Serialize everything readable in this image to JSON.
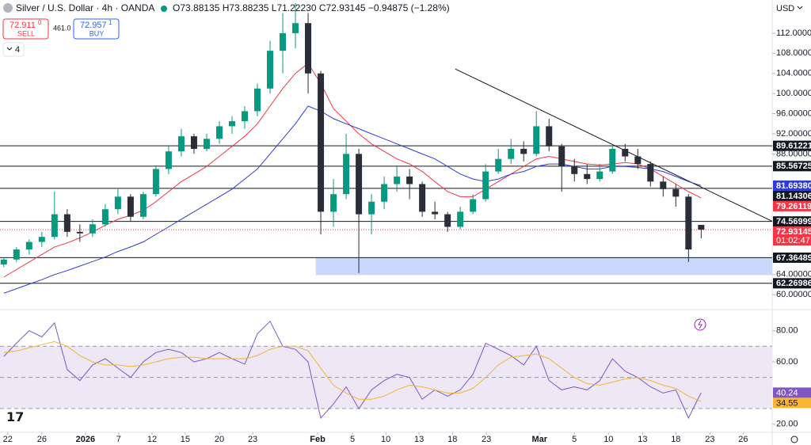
{
  "header": {
    "symbol": "Silver / U.S. Dollar · 4h · OANDA",
    "ohlc": "O73.88135 H73.88235 L71.22230 C72.93145 −0.94875 (−1.28%)",
    "sell_price": "72.911",
    "sell_sup": "0",
    "sell": "SELL",
    "spread": "461.0",
    "buy_price": "72.957",
    "buy_sup": "1",
    "buy": "BUY",
    "indicators": "4",
    "currency": "USD",
    "countdown": "01:02:47"
  },
  "chart_data": [
    {
      "type": "candlestick",
      "xlim": [
        -0.3,
        60.6
      ],
      "ylim": [
        57.2,
        118.6
      ],
      "yticks": [
        {
          "value": 60,
          "label": "60.00000"
        },
        {
          "value": 64,
          "label": "64.00000"
        },
        {
          "value": 88,
          "label": "88.00000"
        },
        {
          "value": 92,
          "label": "92.00000"
        },
        {
          "value": 96,
          "label": "96.00000"
        },
        {
          "value": 100,
          "label": "100.00000"
        },
        {
          "value": 104,
          "label": "104.00000"
        },
        {
          "value": 108,
          "label": "108.00000"
        },
        {
          "value": 112,
          "label": "112.00000"
        }
      ],
      "xticks": [
        {
          "value": 0.31,
          "label": "22"
        },
        {
          "value": 3,
          "label": "26"
        },
        {
          "value": 6.44,
          "label": "2026"
        },
        {
          "value": 9.06,
          "label": "7"
        },
        {
          "value": 11.69,
          "label": "12"
        },
        {
          "value": 14.31,
          "label": "15"
        },
        {
          "value": 17,
          "label": "20"
        },
        {
          "value": 19.63,
          "label": "23"
        },
        {
          "value": 24.75,
          "label": "Feb"
        },
        {
          "value": 27.5,
          "label": "5"
        },
        {
          "value": 30.13,
          "label": "10"
        },
        {
          "value": 32.75,
          "label": "13"
        },
        {
          "value": 35.38,
          "label": "18"
        },
        {
          "value": 38.06,
          "label": "23"
        },
        {
          "value": 42.25,
          "label": "Mar"
        },
        {
          "value": 45,
          "label": "5"
        },
        {
          "value": 47.69,
          "label": "10"
        },
        {
          "value": 50.38,
          "label": "13"
        },
        {
          "value": 53,
          "label": "18"
        },
        {
          "value": 55.69,
          "label": "23"
        },
        {
          "value": 58.31,
          "label": "26"
        }
      ],
      "up_color": "#089981",
      "down_color": "#2a2e39",
      "candles": {
        "open": [
          66.0,
          67.0,
          69.0,
          70.5,
          71.5,
          76.0,
          72.5,
          72.2,
          74.0,
          77.0,
          79.5,
          75.5,
          80.0,
          85.0,
          88.5,
          91.5,
          89.0,
          91.0,
          93.5,
          94.5,
          96.5,
          101.0,
          108.5,
          112.0,
          114.0,
          104.0,
          76.5,
          80.0,
          88.0,
          76.0,
          78.5,
          82.0,
          83.5,
          82.0,
          76.5,
          76.0,
          73.5,
          76.5,
          79.0,
          84.5,
          87.0,
          89.0,
          88.0,
          93.5,
          89.5,
          85.5,
          84.0,
          83.0,
          84.5,
          89.0,
          87.5,
          86.0,
          82.5,
          81.0,
          79.5,
          73.88135
        ],
        "high": [
          67.5,
          69.5,
          71.0,
          72.5,
          80.5,
          77.0,
          74.0,
          75.0,
          78.0,
          81.0,
          80.0,
          80.5,
          85.5,
          89.5,
          93.0,
          92.0,
          92.0,
          94.5,
          95.5,
          97.5,
          102.0,
          110.5,
          116.0,
          118.0,
          116.0,
          104.5,
          83.0,
          92.0,
          89.0,
          80.0,
          83.5,
          85.5,
          85.0,
          82.5,
          78.5,
          76.5,
          77.5,
          80.0,
          86.0,
          89.0,
          91.0,
          90.5,
          96.5,
          95.0,
          90.0,
          87.0,
          86.0,
          86.0,
          90.0,
          90.0,
          89.0,
          86.5,
          83.5,
          82.0,
          80.0,
          73.88235
        ],
        "low": [
          65.5,
          66.5,
          68.0,
          69.5,
          71.0,
          71.5,
          70.5,
          71.5,
          73.5,
          76.0,
          74.5,
          75.0,
          79.5,
          84.0,
          87.5,
          88.0,
          88.5,
          90.0,
          92.0,
          93.0,
          95.5,
          100.0,
          104.0,
          109.0,
          100.0,
          72.0,
          73.5,
          79.0,
          64.3,
          72.0,
          77.0,
          80.5,
          79.0,
          75.5,
          75.0,
          72.5,
          73.0,
          76.0,
          78.5,
          84.0,
          86.0,
          86.5,
          87.5,
          88.5,
          80.5,
          82.5,
          82.0,
          82.5,
          84.0,
          86.5,
          85.0,
          81.5,
          79.5,
          77.5,
          66.5,
          71.2223
        ],
        "close": [
          67.0,
          69.0,
          70.5,
          71.5,
          76.0,
          72.5,
          72.2,
          74.0,
          77.0,
          79.5,
          75.5,
          80.0,
          85.0,
          88.5,
          91.5,
          89.0,
          91.0,
          93.5,
          94.5,
          96.5,
          101.0,
          108.5,
          112.0,
          114.0,
          104.0,
          76.5,
          80.0,
          88.0,
          76.0,
          78.5,
          82.0,
          83.5,
          82.0,
          76.5,
          76.0,
          73.5,
          76.5,
          79.0,
          84.5,
          87.0,
          89.0,
          88.0,
          93.5,
          89.5,
          85.5,
          84.0,
          83.0,
          84.5,
          89.0,
          87.5,
          86.0,
          82.5,
          81.0,
          79.5,
          69.0,
          72.93145
        ]
      },
      "series": [
        {
          "color": "#f23645",
          "values": [
            63.5,
            65,
            66.5,
            68,
            69.5,
            70.3,
            71.3,
            72.5,
            73.8,
            75,
            75.8,
            76.8,
            78.5,
            80.5,
            82.5,
            84,
            85.5,
            87.5,
            89.5,
            91.5,
            94,
            97.5,
            101,
            104,
            106,
            102,
            97,
            94.5,
            92,
            90,
            88.5,
            87,
            86,
            84.5,
            82.5,
            80.5,
            79.5,
            79.5,
            81,
            82.5,
            84,
            85.5,
            87,
            87.5,
            87,
            86.5,
            86,
            85.8,
            86,
            86.3,
            86,
            85,
            83.5,
            82,
            80.5,
            79.26119
          ]
        },
        {
          "color": "#2f3bd6",
          "values": [
            60.3,
            61.2,
            62.1,
            63,
            64,
            64.8,
            65.7,
            66.6,
            67.5,
            68.6,
            69.5,
            70.5,
            72,
            73.5,
            75,
            76.5,
            78,
            79.5,
            81,
            83,
            85,
            88,
            91,
            94,
            97.5,
            96.5,
            95,
            94,
            93,
            92,
            91,
            90,
            89,
            88,
            87,
            85.5,
            84,
            83,
            82.5,
            83,
            84,
            84.5,
            85.5,
            86,
            86,
            85.5,
            85,
            85,
            85.5,
            85.5,
            85.3,
            85,
            84.5,
            83.5,
            82.5,
            81.6938
          ],
          "value_labels": [
            null,
            null,
            null,
            null,
            null,
            null,
            null,
            null,
            null,
            null,
            null,
            null,
            null,
            null,
            null,
            null,
            null,
            null,
            null,
            null,
            null,
            null,
            null,
            null,
            null,
            null,
            null,
            null,
            null,
            null,
            null,
            null,
            null,
            null,
            null,
            null,
            null,
            null,
            null,
            null,
            null,
            null,
            null,
            null,
            null,
            null,
            null,
            null,
            null,
            null,
            null,
            null,
            null,
            null,
            null,
            "81.69380"
          ]
        }
      ],
      "levels": {
        "color": "#131722",
        "values": [
          89.61221,
          85.56725,
          81.14306,
          74.56999,
          67.36489,
          62.26986
        ]
      },
      "zone": {
        "color": "#c9d8fb",
        "x0": 24.6,
        "range": [
          63.9,
          67.36489
        ]
      },
      "trendline": {
        "color": "#131722",
        "x": [
          35.6,
          60.6
        ],
        "values": [
          104.9,
          74.6
        ]
      },
      "last_color": "#f23645"
    },
    {
      "type": "line",
      "xlim": [
        -0.3,
        60.6
      ],
      "ylim": [
        15.3,
        93
      ],
      "yticks": [
        {
          "value": 80,
          "label": "80.00"
        },
        {
          "value": 60,
          "label": "60.00"
        },
        {
          "value": 20,
          "label": "20.00"
        }
      ],
      "levels": [
        70,
        50,
        30
      ],
      "band_color": "#ede7f6",
      "series": [
        {
          "color": "#7e57c2",
          "values": [
            63.5,
            72,
            80,
            76,
            85,
            55,
            48,
            58,
            62,
            56,
            50,
            60,
            66,
            68,
            66,
            60,
            62,
            66,
            62,
            58.5,
            78,
            86,
            70,
            68,
            60,
            24,
            33,
            44,
            30,
            42,
            48,
            52,
            50,
            36,
            42,
            38,
            42,
            52,
            72,
            68,
            64,
            58,
            70,
            48,
            42,
            44,
            42,
            48,
            62,
            54,
            50,
            44,
            40,
            42,
            24,
            40.24
          ]
        },
        {
          "color": "#f7b531",
          "values": [
            66,
            67,
            69,
            71,
            73,
            70,
            64,
            60,
            58,
            58,
            57,
            58,
            60,
            62,
            63,
            63,
            62,
            62,
            62,
            62,
            64,
            68,
            70,
            70,
            67,
            56,
            45,
            40,
            36,
            36,
            38,
            42,
            45,
            44,
            42,
            40,
            40,
            43,
            50,
            58,
            63,
            64,
            65,
            62,
            56,
            50,
            46,
            45,
            47,
            49,
            50,
            48,
            45,
            43,
            38,
            34.55
          ]
        }
      ]
    }
  ]
}
